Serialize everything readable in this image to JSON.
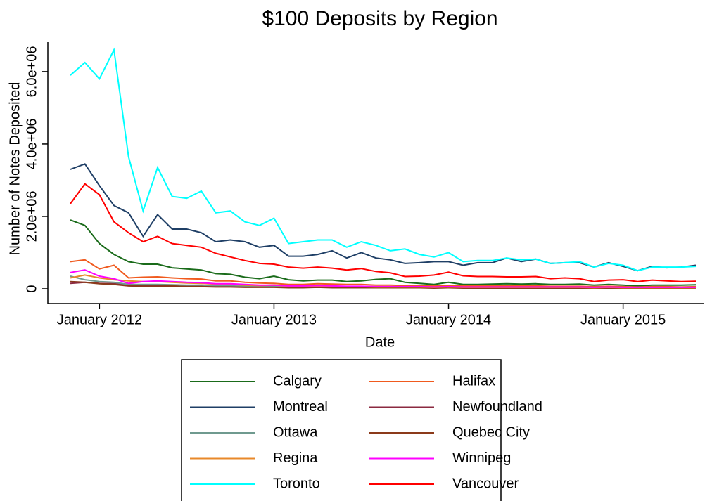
{
  "chart_data": {
    "type": "line",
    "title": "$100 Deposits by Region",
    "x_label": "Date",
    "y_label": "Number of Notes Deposited",
    "x": [
      "2011-11",
      "2011-12",
      "2012-01",
      "2012-02",
      "2012-03",
      "2012-04",
      "2012-05",
      "2012-06",
      "2012-07",
      "2012-08",
      "2012-09",
      "2012-10",
      "2012-11",
      "2012-12",
      "2013-01",
      "2013-02",
      "2013-03",
      "2013-04",
      "2013-05",
      "2013-06",
      "2013-07",
      "2013-08",
      "2013-09",
      "2013-10",
      "2013-11",
      "2013-12",
      "2014-01",
      "2014-02",
      "2014-03",
      "2014-04",
      "2014-05",
      "2014-06",
      "2014-07",
      "2014-08",
      "2014-09",
      "2014-10",
      "2014-11",
      "2014-12",
      "2015-01",
      "2015-02",
      "2015-03",
      "2015-04",
      "2015-05",
      "2015-06"
    ],
    "xlim": [
      "2011-11",
      "2015-06"
    ],
    "xticks": [
      {
        "value": "2012-01",
        "label": "January 2012"
      },
      {
        "value": "2013-01",
        "label": "January 2013"
      },
      {
        "value": "2014-01",
        "label": "January 2014"
      },
      {
        "value": "2015-01",
        "label": "January 2015"
      }
    ],
    "ylim": [
      0,
      6600000.0
    ],
    "yticks": [
      0,
      {
        "value": 2000000.0,
        "label": "2.0e+06"
      },
      {
        "value": 4000000.0,
        "label": "4.0e+06"
      },
      {
        "value": 6000000.0,
        "label": "6.0e+06"
      }
    ],
    "series": [
      {
        "name": "Calgary",
        "color": "#1a6b1a",
        "values": [
          1900000.0,
          1750000.0,
          1250000.0,
          950000.0,
          750000.0,
          680000.0,
          680000.0,
          580000.0,
          550000.0,
          520000.0,
          420000.0,
          400000.0,
          320000.0,
          280000.0,
          350000.0,
          250000.0,
          220000.0,
          240000.0,
          240000.0,
          200000.0,
          220000.0,
          260000.0,
          280000.0,
          180000.0,
          150000.0,
          120000.0,
          180000.0,
          120000.0,
          120000.0,
          130000.0,
          140000.0,
          130000.0,
          140000.0,
          120000.0,
          120000.0,
          130000.0,
          100000.0,
          120000.0,
          100000.0,
          80000.0,
          100000.0,
          100000.0,
          100000.0,
          110000.0
        ]
      },
      {
        "name": "Halifax",
        "color": "#f05a1e",
        "values": [
          750000.0,
          800000.0,
          550000.0,
          650000.0,
          300000.0,
          320000.0,
          330000.0,
          300000.0,
          280000.0,
          270000.0,
          220000.0,
          220000.0,
          180000.0,
          160000.0,
          150000.0,
          120000.0,
          120000.0,
          140000.0,
          130000.0,
          120000.0,
          120000.0,
          100000.0,
          100000.0,
          90000.0,
          90000.0,
          80000.0,
          90000.0,
          80000.0,
          80000.0,
          80000.0,
          80000.0,
          80000.0,
          80000.0,
          70000.0,
          70000.0,
          70000.0,
          60000.0,
          70000.0,
          60000.0,
          50000.0,
          60000.0,
          60000.0,
          50000.0,
          60000.0
        ]
      },
      {
        "name": "Montreal",
        "color": "#1f3f66",
        "values": [
          3300000.0,
          3450000.0,
          2850000.0,
          2300000.0,
          2100000.0,
          1450000.0,
          2050000.0,
          1650000.0,
          1650000.0,
          1550000.0,
          1300000.0,
          1350000.0,
          1300000.0,
          1150000.0,
          1200000.0,
          900000.0,
          900000.0,
          950000.0,
          1050000.0,
          850000.0,
          1000000.0,
          850000.0,
          800000.0,
          700000.0,
          720000.0,
          750000.0,
          750000.0,
          650000.0,
          720000.0,
          720000.0,
          850000.0,
          750000.0,
          820000.0,
          700000.0,
          720000.0,
          720000.0,
          600000.0,
          720000.0,
          620000.0,
          500000.0,
          620000.0,
          580000.0,
          600000.0,
          650000.0
        ]
      },
      {
        "name": "Newfoundland",
        "color": "#8b2a40",
        "values": [
          150000.0,
          180000.0,
          150000.0,
          140000.0,
          100000.0,
          100000.0,
          100000.0,
          90000.0,
          80000.0,
          80000.0,
          60000.0,
          60000.0,
          50000.0,
          50000.0,
          50000.0,
          40000.0,
          40000.0,
          40000.0,
          40000.0,
          40000.0,
          40000.0,
          30000.0,
          30000.0,
          30000.0,
          30000.0,
          30000.0,
          30000.0,
          30000.0,
          30000.0,
          30000.0,
          30000.0,
          30000.0,
          30000.0,
          30000.0,
          30000.0,
          30000.0,
          20000.0,
          30000.0,
          20000.0,
          20000.0,
          20000.0,
          20000.0,
          20000.0,
          20000.0
        ]
      },
      {
        "name": "Ottawa",
        "color": "#6f9a8f",
        "values": [
          350000.0,
          250000.0,
          200000.0,
          180000.0,
          120000.0,
          120000.0,
          120000.0,
          110000.0,
          100000.0,
          100000.0,
          80000.0,
          80000.0,
          70000.0,
          60000.0,
          70000.0,
          50000.0,
          50000.0,
          50000.0,
          50000.0,
          40000.0,
          40000.0,
          40000.0,
          40000.0,
          40000.0,
          40000.0,
          30000.0,
          40000.0,
          30000.0,
          30000.0,
          30000.0,
          30000.0,
          30000.0,
          30000.0,
          30000.0,
          30000.0,
          30000.0,
          30000.0,
          30000.0,
          30000.0,
          20000.0,
          30000.0,
          30000.0,
          30000.0,
          30000.0
        ]
      },
      {
        "name": "Quebec City",
        "color": "#8b3a1a",
        "values": [
          200000.0,
          180000.0,
          140000.0,
          120000.0,
          80000.0,
          70000.0,
          70000.0,
          80000.0,
          60000.0,
          60000.0,
          50000.0,
          50000.0,
          40000.0,
          40000.0,
          40000.0,
          30000.0,
          30000.0,
          40000.0,
          30000.0,
          30000.0,
          30000.0,
          30000.0,
          30000.0,
          30000.0,
          30000.0,
          20000.0,
          30000.0,
          20000.0,
          20000.0,
          20000.0,
          20000.0,
          20000.0,
          20000.0,
          20000.0,
          20000.0,
          20000.0,
          20000.0,
          20000.0,
          20000.0,
          20000.0,
          20000.0,
          20000.0,
          20000.0,
          20000.0
        ]
      },
      {
        "name": "Regina",
        "color": "#e8882a",
        "values": [
          300000.0,
          380000.0,
          300000.0,
          250000.0,
          220000.0,
          200000.0,
          200000.0,
          180000.0,
          160000.0,
          150000.0,
          130000.0,
          120000.0,
          100000.0,
          90000.0,
          100000.0,
          70000.0,
          70000.0,
          80000.0,
          70000.0,
          60000.0,
          60000.0,
          50000.0,
          50000.0,
          50000.0,
          50000.0,
          40000.0,
          50000.0,
          40000.0,
          40000.0,
          40000.0,
          40000.0,
          40000.0,
          40000.0,
          40000.0,
          40000.0,
          40000.0,
          30000.0,
          40000.0,
          30000.0,
          30000.0,
          30000.0,
          30000.0,
          30000.0,
          30000.0
        ]
      },
      {
        "name": "Winnipeg",
        "color": "#ff00ff",
        "values": [
          450000.0,
          520000.0,
          350000.0,
          280000.0,
          150000.0,
          200000.0,
          220000.0,
          200000.0,
          180000.0,
          170000.0,
          140000.0,
          140000.0,
          120000.0,
          100000.0,
          100000.0,
          80000.0,
          80000.0,
          90000.0,
          80000.0,
          70000.0,
          70000.0,
          60000.0,
          60000.0,
          60000.0,
          60000.0,
          50000.0,
          60000.0,
          50000.0,
          50000.0,
          50000.0,
          50000.0,
          50000.0,
          50000.0,
          50000.0,
          50000.0,
          50000.0,
          40000.0,
          50000.0,
          40000.0,
          40000.0,
          40000.0,
          40000.0,
          40000.0,
          40000.0
        ]
      },
      {
        "name": "Toronto",
        "color": "#00ffff",
        "values": [
          5900000.0,
          6250000.0,
          5800000.0,
          6600000.0,
          3650000.0,
          2150000.0,
          3350000.0,
          2550000.0,
          2500000.0,
          2700000.0,
          2100000.0,
          2150000.0,
          1850000.0,
          1750000.0,
          1950000.0,
          1250000.0,
          1300000.0,
          1350000.0,
          1350000.0,
          1150000.0,
          1300000.0,
          1200000.0,
          1050000.0,
          1100000.0,
          950000.0,
          880000.0,
          1000000.0,
          750000.0,
          780000.0,
          780000.0,
          850000.0,
          800000.0,
          820000.0,
          700000.0,
          720000.0,
          750000.0,
          600000.0,
          700000.0,
          650000.0,
          500000.0,
          600000.0,
          600000.0,
          600000.0,
          620000.0
        ]
      },
      {
        "name": "Vancouver",
        "color": "#ff0000",
        "values": [
          2350000.0,
          2900000.0,
          2600000.0,
          1850000.0,
          1550000.0,
          1300000.0,
          1450000.0,
          1250000.0,
          1200000.0,
          1150000.0,
          980000.0,
          880000.0,
          780000.0,
          700000.0,
          680000.0,
          600000.0,
          570000.0,
          600000.0,
          570000.0,
          520000.0,
          560000.0,
          480000.0,
          440000.0,
          340000.0,
          350000.0,
          380000.0,
          460000.0,
          360000.0,
          340000.0,
          340000.0,
          330000.0,
          330000.0,
          340000.0,
          280000.0,
          300000.0,
          280000.0,
          200000.0,
          240000.0,
          250000.0,
          200000.0,
          240000.0,
          220000.0,
          200000.0,
          210000.0
        ]
      }
    ]
  }
}
